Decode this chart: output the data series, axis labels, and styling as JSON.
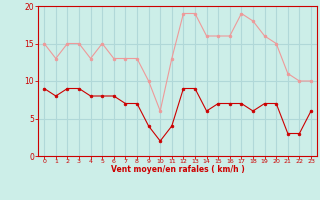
{
  "x": [
    0,
    1,
    2,
    3,
    4,
    5,
    6,
    7,
    8,
    9,
    10,
    11,
    12,
    13,
    14,
    15,
    16,
    17,
    18,
    19,
    20,
    21,
    22,
    23
  ],
  "wind_mean": [
    9,
    8,
    9,
    9,
    8,
    8,
    8,
    7,
    7,
    4,
    2,
    4,
    9,
    9,
    6,
    7,
    7,
    7,
    6,
    7,
    7,
    3,
    3,
    6
  ],
  "wind_gust": [
    15,
    13,
    15,
    15,
    13,
    15,
    13,
    13,
    13,
    10,
    6,
    13,
    19,
    19,
    16,
    16,
    16,
    19,
    18,
    16,
    15,
    11,
    10,
    10
  ],
  "bg_color": "#cceee8",
  "grid_color": "#b0d8d8",
  "mean_color": "#cc0000",
  "gust_color": "#ee9999",
  "xlabel": "Vent moyen/en rafales ( km/h )",
  "yticks": [
    0,
    5,
    10,
    15,
    20
  ],
  "xticks": [
    0,
    1,
    2,
    3,
    4,
    5,
    6,
    7,
    8,
    9,
    10,
    11,
    12,
    13,
    14,
    15,
    16,
    17,
    18,
    19,
    20,
    21,
    22,
    23
  ],
  "ylim": [
    0,
    20
  ],
  "xlim": [
    -0.5,
    23.5
  ]
}
